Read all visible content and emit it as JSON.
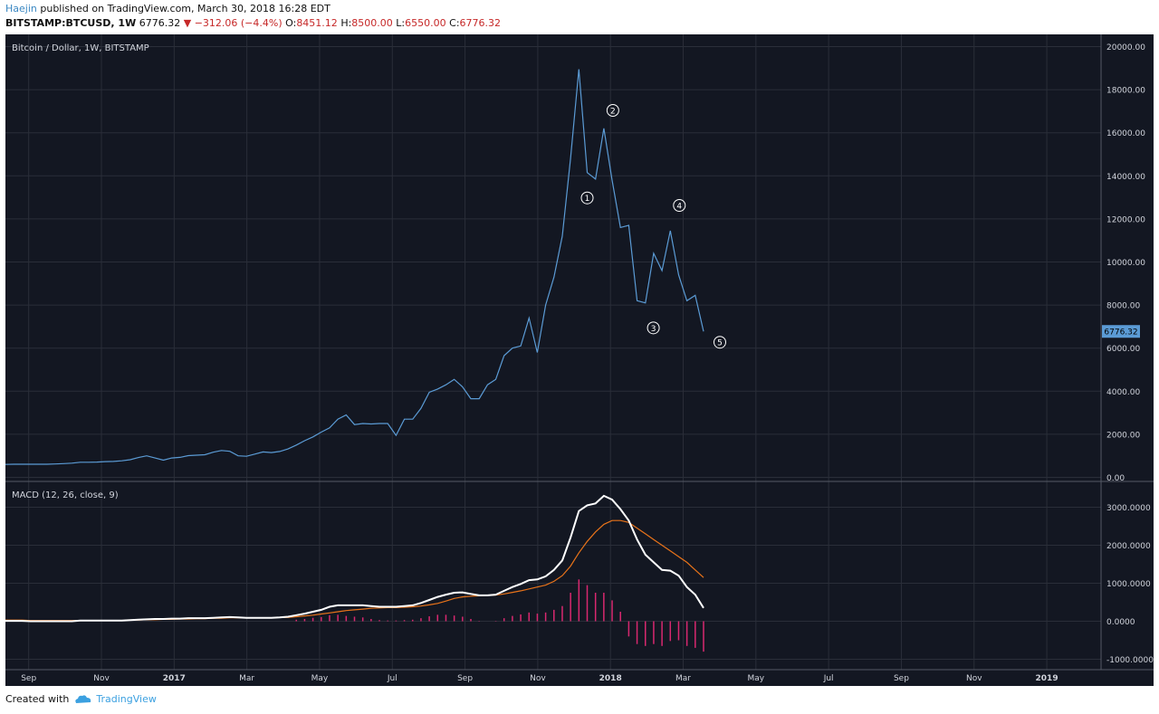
{
  "header": {
    "author": "Haejin",
    "published": "published on TradingView.com, March 30, 2018 16:28 EDT",
    "symbol": "BITSTAMP:BTCUSD, 1W",
    "last": "6776.32",
    "change": "−312.06 (−4.4%)",
    "o_label": "O:",
    "o_value": "8451.12",
    "h_label": "H:",
    "h_value": "8500.00",
    "l_label": "L:",
    "l_value": "6550.00",
    "c_label": "C:",
    "c_value": "6776.32"
  },
  "footer": {
    "created_with": "Created with",
    "brand": "TradingView"
  },
  "colors": {
    "background": "#131722",
    "grid": "#2a2e39",
    "price_line": "#5b9bd5",
    "macd_line": "#ffffff",
    "signal_line": "#e8731a",
    "histogram": "#d8286f",
    "annotation": "#ffffff",
    "axis_text": "#d1d4dc",
    "last_price_badge": "#5b9bd5"
  },
  "chart_data": [
    {
      "type": "line",
      "title": "Bitcoin / Dollar, 1W, BITSTAMP",
      "last_price_label": "6776.32",
      "ylim": [
        0,
        20000
      ],
      "y_ticks": [
        "0.00",
        "2000.00",
        "4000.00",
        "6000.00",
        "8000.00",
        "10000.00",
        "12000.00",
        "14000.00",
        "16000.00",
        "18000.00",
        "20000.00"
      ],
      "x_ticks": [
        "Sep",
        "Nov",
        "2017",
        "Mar",
        "May",
        "Jul",
        "Sep",
        "Nov",
        "2018",
        "Mar",
        "May",
        "Jul",
        "Sep",
        "Nov",
        "2019"
      ],
      "x_ticks_emphasis": [
        "2017",
        "2018",
        "2019"
      ],
      "series": [
        {
          "values": [
            600,
            610,
            610,
            610,
            610,
            610,
            620,
            640,
            660,
            700,
            700,
            710,
            730,
            740,
            770,
            820,
            920,
            1000,
            900,
            800,
            900,
            930,
            1010,
            1030,
            1050,
            1170,
            1250,
            1210,
            1000,
            980,
            1080,
            1180,
            1150,
            1200,
            1320,
            1500,
            1700,
            1880,
            2100,
            2300,
            2700,
            2900,
            2450,
            2500,
            2480,
            2500,
            2500,
            1950,
            2700,
            2700,
            3200,
            3950,
            4100,
            4300,
            4550,
            4200,
            3650,
            3650,
            4300,
            4550,
            5650,
            6000,
            6100,
            7400,
            5800,
            8000,
            9300,
            11200,
            14800,
            18950,
            14150,
            13850,
            16200,
            13800,
            11600,
            11700,
            8200,
            8100,
            10400,
            9600,
            11450,
            9400,
            8200,
            8451,
            6776
          ],
          "point_labels": [
            {
              "index": 70,
              "label": "①"
            },
            {
              "index": 72,
              "label": "②"
            },
            {
              "index": 76,
              "label": "③"
            },
            {
              "index": 80,
              "label": "④"
            },
            {
              "index": 84,
              "label": "⑤"
            }
          ]
        }
      ]
    },
    {
      "type": "line",
      "title": "MACD (12, 26, close, 9)",
      "ylim": [
        -1000,
        3500
      ],
      "y_ticks": [
        "-1000.0000",
        "0.0000",
        "1000.0000",
        "2000.0000",
        "3000.0000"
      ],
      "series": [
        {
          "name": "MACD",
          "values": [
            10,
            10,
            10,
            0,
            0,
            0,
            0,
            0,
            0,
            20,
            20,
            20,
            20,
            20,
            20,
            30,
            40,
            50,
            60,
            60,
            70,
            70,
            80,
            80,
            80,
            90,
            100,
            110,
            100,
            90,
            90,
            90,
            90,
            100,
            120,
            160,
            200,
            250,
            300,
            380,
            420,
            420,
            420,
            420,
            400,
            380,
            380,
            380,
            400,
            420,
            480,
            560,
            640,
            700,
            750,
            760,
            720,
            680,
            680,
            700,
            800,
            900,
            980,
            1080,
            1100,
            1180,
            1350,
            1600,
            2200,
            2900,
            3050,
            3100,
            3300,
            3200,
            2950,
            2650,
            2150,
            1750,
            1550,
            1350,
            1330,
            1200,
            900,
            700,
            350
          ]
        },
        {
          "name": "Signal",
          "values": [
            30,
            30,
            30,
            20,
            20,
            20,
            20,
            20,
            20,
            20,
            20,
            20,
            20,
            20,
            20,
            30,
            30,
            40,
            40,
            50,
            50,
            60,
            60,
            70,
            70,
            80,
            80,
            90,
            90,
            90,
            90,
            90,
            90,
            100,
            100,
            120,
            140,
            160,
            190,
            220,
            250,
            280,
            300,
            320,
            340,
            350,
            360,
            360,
            370,
            380,
            400,
            430,
            470,
            530,
            600,
            640,
            660,
            670,
            680,
            690,
            720,
            760,
            800,
            850,
            900,
            950,
            1050,
            1200,
            1450,
            1800,
            2100,
            2350,
            2550,
            2650,
            2650,
            2600,
            2450,
            2300,
            2150,
            2000,
            1850,
            1700,
            1550,
            1350,
            1150
          ]
        },
        {
          "name": "Histogram",
          "type": "bar",
          "values": [
            0,
            0,
            0,
            0,
            0,
            0,
            0,
            0,
            0,
            0,
            0,
            0,
            0,
            0,
            0,
            0,
            0,
            0,
            0,
            0,
            0,
            0,
            0,
            0,
            0,
            0,
            0,
            0,
            0,
            0,
            0,
            0,
            0,
            0,
            0,
            40,
            60,
            90,
            110,
            160,
            170,
            140,
            120,
            100,
            60,
            30,
            20,
            20,
            30,
            40,
            80,
            130,
            170,
            170,
            150,
            120,
            60,
            10,
            0,
            10,
            80,
            140,
            180,
            230,
            200,
            230,
            300,
            400,
            750,
            1100,
            950,
            750,
            750,
            550,
            250,
            -400,
            -600,
            -650,
            -600,
            -650,
            -520,
            -500,
            -650,
            -700,
            -800
          ]
        }
      ]
    }
  ]
}
